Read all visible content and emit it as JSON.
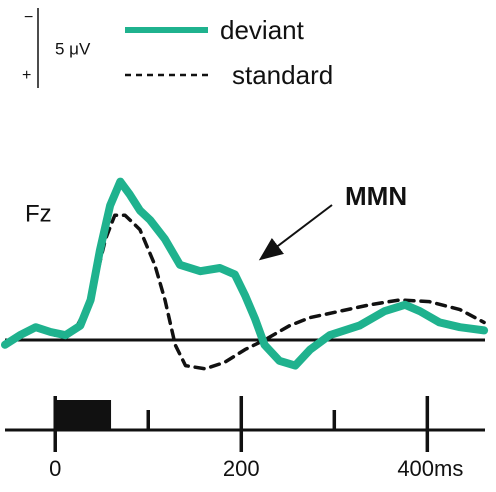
{
  "chart_data": {
    "type": "line",
    "channel": "Fz",
    "annotation": "MMN",
    "annotation_color": "#2f6a9e",
    "scale_bar": {
      "value": 5,
      "label": "5 μV",
      "top_sign": "−",
      "bottom_sign": "+"
    },
    "xlim": [
      -54,
      462
    ],
    "ylim": [
      2.5,
      -10.6
    ],
    "y_inverted": true,
    "xticks": [
      0,
      200,
      {
        "value": 400,
        "label": "400ms"
      }
    ],
    "xminor_ticks": [
      100,
      300
    ],
    "stimulus": [
      0,
      60
    ],
    "series": [
      {
        "name": "deviant",
        "color": "#1fb28e",
        "style": "solid",
        "x": [
          -54,
          -38,
          -21,
          -5,
          11,
          27,
          38,
          48,
          59,
          70,
          80,
          91,
          102,
          118,
          134,
          156,
          177,
          193,
          204,
          215,
          225,
          241,
          258,
          274,
          295,
          327,
          354,
          376,
          392,
          413,
          435,
          461
        ],
        "values": [
          0.3,
          -0.3,
          -0.8,
          -0.5,
          -0.3,
          -0.9,
          -2.5,
          -5.6,
          -8.4,
          -9.9,
          -9.1,
          -8.1,
          -7.5,
          -6.3,
          -4.7,
          -4.3,
          -4.5,
          -4.1,
          -2.8,
          -1.3,
          0.3,
          1.3,
          1.6,
          0.6,
          -0.3,
          -0.9,
          -1.8,
          -2.2,
          -1.8,
          -1.1,
          -0.8,
          -0.6
        ]
      },
      {
        "name": "standard",
        "color": "#111111",
        "style": "dashed",
        "x": [
          -54,
          -38,
          -21,
          0,
          21,
          38,
          54,
          64,
          75,
          91,
          107,
          118,
          129,
          140,
          161,
          182,
          204,
          225,
          252,
          274,
          306,
          338,
          370,
          402,
          435,
          461
        ],
        "values": [
          0.3,
          -0.3,
          -0.8,
          -0.3,
          -0.6,
          -2.5,
          -6.3,
          -7.8,
          -7.8,
          -6.9,
          -4.7,
          -2.5,
          0.3,
          1.6,
          1.8,
          1.4,
          0.6,
          0,
          -0.9,
          -1.4,
          -1.8,
          -2.2,
          -2.5,
          -2.4,
          -1.9,
          -1.1
        ]
      }
    ]
  }
}
